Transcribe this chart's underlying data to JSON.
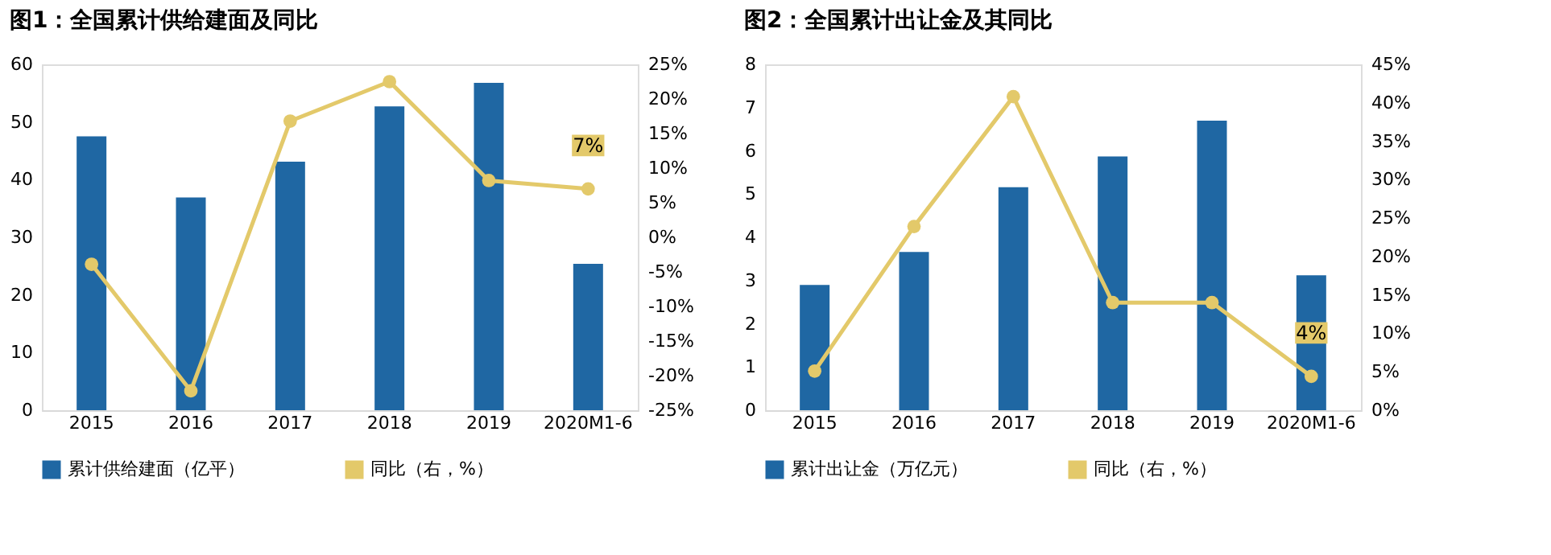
{
  "chart_data": [
    {
      "type": "bar",
      "title": "图1：全国累计供给建面及同比",
      "categories": [
        "2015",
        "2016",
        "2017",
        "2018",
        "2019",
        "2020M1-6"
      ],
      "ylim": [
        0,
        60
      ],
      "yticks": [
        0,
        10,
        20,
        30,
        40,
        50,
        60
      ],
      "y2lim": [
        -25,
        25
      ],
      "y2ticks": [
        {
          "value": -25,
          "label": "-25%"
        },
        {
          "value": -20,
          "label": "-20%"
        },
        {
          "value": -15,
          "label": "-15%"
        },
        {
          "value": -10,
          "label": "-10%"
        },
        {
          "value": -5,
          "label": "-5%"
        },
        {
          "value": 0,
          "label": "0%"
        },
        {
          "value": 5,
          "label": "5%"
        },
        {
          "value": 10,
          "label": "10%"
        },
        {
          "value": 15,
          "label": "15%"
        },
        {
          "value": 20,
          "label": "20%"
        },
        {
          "value": 25,
          "label": "25%"
        }
      ],
      "grid": false,
      "legend": "bottom",
      "marker": "circle",
      "series": [
        {
          "name": "累计供给建面（亿平）",
          "color": "#1f67a3",
          "values": [
            47.5,
            36.9,
            43.1,
            52.7,
            56.8,
            25.4
          ]
        },
        {
          "name": "同比（右，%）",
          "type": "line",
          "axis": "y2",
          "color": "#e3c96a",
          "values": [
            -3.9,
            -22.2,
            16.8,
            22.5,
            8.2,
            7
          ],
          "value_labels": [
            null,
            null,
            null,
            null,
            null,
            "7%"
          ]
        }
      ]
    },
    {
      "type": "bar",
      "title": "图2：全国累计出让金及其同比",
      "categories": [
        "2015",
        "2016",
        "2017",
        "2018",
        "2019",
        "2020M1-6"
      ],
      "ylim": [
        0,
        8
      ],
      "yticks": [
        0,
        1,
        2,
        3,
        4,
        5,
        6,
        7,
        8
      ],
      "y2lim": [
        0,
        45
      ],
      "y2ticks": [
        {
          "value": 0,
          "label": "0%"
        },
        {
          "value": 5,
          "label": "5%"
        },
        {
          "value": 10,
          "label": "10%"
        },
        {
          "value": 15,
          "label": "15%"
        },
        {
          "value": 20,
          "label": "20%"
        },
        {
          "value": 25,
          "label": "25%"
        },
        {
          "value": 30,
          "label": "30%"
        },
        {
          "value": 35,
          "label": "35%"
        },
        {
          "value": 40,
          "label": "40%"
        },
        {
          "value": 45,
          "label": "45%"
        }
      ],
      "grid": false,
      "legend": "bottom",
      "marker": "circle",
      "series": [
        {
          "name": "累计出让金（万亿元）",
          "color": "#1f67a3",
          "values": [
            2.9,
            3.66,
            5.16,
            5.87,
            6.7,
            3.12
          ]
        },
        {
          "name": "同比（右，%）",
          "type": "line",
          "axis": "y2",
          "color": "#e3c96a",
          "values": [
            5.1,
            23.9,
            40.8,
            14.0,
            14.0,
            4.4
          ],
          "value_labels": [
            null,
            null,
            null,
            null,
            null,
            "4%"
          ]
        }
      ]
    }
  ]
}
